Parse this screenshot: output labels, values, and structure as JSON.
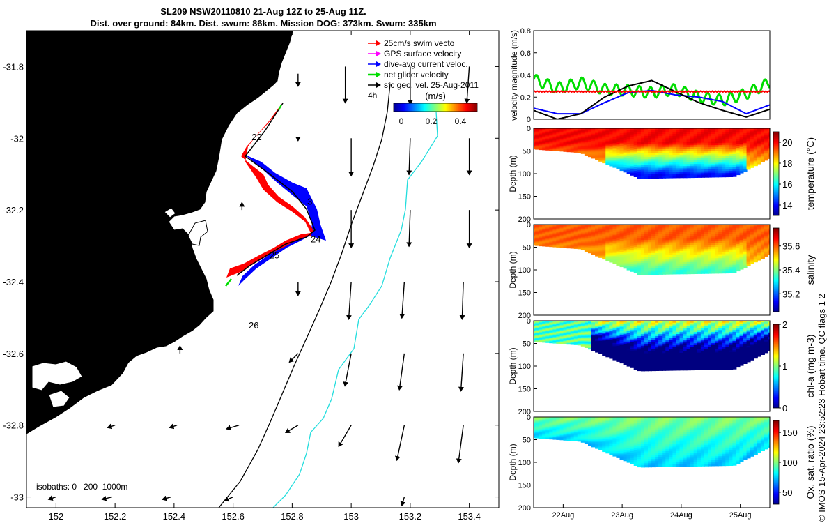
{
  "title": {
    "line1": "SL209 NSW20110810 21-Aug 12Z to 25-Aug 11Z.",
    "line2": "Dist. over ground: 84km. Dist. swum: 86km. Mission DOG: 373km. Swum: 335km"
  },
  "footer": "© IMOS 15-Apr-2024 23:52:23 Hobart time. QC flags 1 2",
  "colors": {
    "land": "#f9c79b",
    "swim": "#ff0000",
    "gps": "#ff00ff",
    "dive_avg": "#0000ff",
    "net": "#00dd00",
    "geo": "#000000",
    "iso200": "#000000",
    "iso1000": "#22dddd"
  },
  "chart_data": [
    {
      "type": "map",
      "xlim": [
        151.9,
        153.5
      ],
      "ylim": [
        -33.03,
        -31.7
      ],
      "xticks": [
        "152",
        "152.2",
        "152.4",
        "152.6",
        "152.8",
        "153",
        "153.2",
        "153.4"
      ],
      "yticks": [
        "-31.8",
        "-32",
        "-32.2",
        "-32.4",
        "-32.6",
        "-32.8",
        "-33"
      ],
      "legend": {
        "placement": "top-right",
        "entries": [
          "25cm/s swim vecto",
          "GPS surface velocity",
          "dive-avg current veloc.",
          "net glider velocity",
          "sfc geo. vel. 25-Aug-2011"
        ]
      },
      "legend_note": "4h",
      "colorbar": {
        "label": "(m/s)",
        "ticks": [
          "0",
          "0.2",
          "0.4"
        ],
        "range": [
          0,
          0.5
        ]
      },
      "isobath_note": "isobaths: 0   200  1000m",
      "track": [
        [
          152.79,
          -31.92
        ],
        [
          152.77,
          -31.96
        ],
        [
          152.74,
          -32.0
        ],
        [
          152.71,
          -32.02
        ],
        [
          152.66,
          -32.06
        ],
        [
          152.63,
          -32.04
        ],
        [
          152.67,
          -32.08
        ],
        [
          152.73,
          -32.11
        ],
        [
          152.78,
          -32.15
        ],
        [
          152.83,
          -32.2
        ],
        [
          152.86,
          -32.24
        ],
        [
          152.88,
          -32.28
        ],
        [
          152.84,
          -32.3
        ],
        [
          152.78,
          -32.32
        ],
        [
          152.72,
          -32.35
        ],
        [
          152.66,
          -32.38
        ],
        [
          152.6,
          -32.4
        ]
      ],
      "day_labels": [
        {
          "text": "22",
          "lon": 152.68,
          "lat": -32.005
        },
        {
          "text": "3",
          "lon": 152.86,
          "lat": -32.185
        },
        {
          "text": "24",
          "lon": 152.88,
          "lat": -32.29
        },
        {
          "text": "25",
          "lon": 152.74,
          "lat": -32.335
        },
        {
          "text": "26",
          "lon": 152.67,
          "lat": -32.53
        }
      ],
      "geo_vectors": [
        {
          "lon": 152.98,
          "lat": -31.8,
          "u": 0.0,
          "v": -0.29
        },
        {
          "lon": 153.2,
          "lat": -31.8,
          "u": 0.0,
          "v": -0.3
        },
        {
          "lon": 153.4,
          "lat": -31.8,
          "u": -0.02,
          "v": -0.29
        },
        {
          "lon": 152.82,
          "lat": -31.82,
          "u": 0.0,
          "v": -0.1
        },
        {
          "lon": 153.2,
          "lat": -32.0,
          "u": -0.01,
          "v": -0.29
        },
        {
          "lon": 153.4,
          "lat": -32.0,
          "u": 0.0,
          "v": -0.29
        },
        {
          "lon": 153.0,
          "lat": -32.0,
          "u": 0.0,
          "v": -0.3
        },
        {
          "lon": 152.82,
          "lat": -32.0,
          "u": 0.0,
          "v": -0.02
        },
        {
          "lon": 153.0,
          "lat": -32.2,
          "u": 0.0,
          "v": -0.3
        },
        {
          "lon": 153.2,
          "lat": -32.2,
          "u": -0.01,
          "v": -0.29
        },
        {
          "lon": 153.4,
          "lat": -32.2,
          "u": 0.0,
          "v": -0.3
        },
        {
          "lon": 152.63,
          "lat": -32.2,
          "u": 0.0,
          "v": 0.06
        },
        {
          "lon": 152.82,
          "lat": -32.4,
          "u": 0.0,
          "v": -0.11
        },
        {
          "lon": 153.0,
          "lat": -32.4,
          "u": -0.02,
          "v": -0.3
        },
        {
          "lon": 153.18,
          "lat": -32.4,
          "u": -0.02,
          "v": -0.29
        },
        {
          "lon": 153.38,
          "lat": -32.4,
          "u": -0.01,
          "v": -0.3
        },
        {
          "lon": 152.42,
          "lat": -32.6,
          "u": 0.0,
          "v": 0.06
        },
        {
          "lon": 152.82,
          "lat": -32.6,
          "u": -0.07,
          "v": -0.07
        },
        {
          "lon": 153.0,
          "lat": -32.6,
          "u": -0.05,
          "v": -0.26
        },
        {
          "lon": 153.18,
          "lat": -32.6,
          "u": -0.04,
          "v": -0.29
        },
        {
          "lon": 153.38,
          "lat": -32.6,
          "u": -0.02,
          "v": -0.3
        },
        {
          "lon": 152.2,
          "lat": -32.8,
          "u": -0.06,
          "v": -0.02
        },
        {
          "lon": 152.41,
          "lat": -32.8,
          "u": -0.06,
          "v": -0.02
        },
        {
          "lon": 152.62,
          "lat": -32.8,
          "u": -0.1,
          "v": -0.03
        },
        {
          "lon": 152.82,
          "lat": -32.8,
          "u": -0.1,
          "v": -0.06
        },
        {
          "lon": 153.0,
          "lat": -32.8,
          "u": -0.1,
          "v": -0.17
        },
        {
          "lon": 153.18,
          "lat": -32.8,
          "u": -0.06,
          "v": -0.28
        },
        {
          "lon": 153.38,
          "lat": -32.8,
          "u": -0.04,
          "v": -0.3
        },
        {
          "lon": 152.0,
          "lat": -33.0,
          "u": -0.06,
          "v": -0.02
        },
        {
          "lon": 152.19,
          "lat": -33.0,
          "u": -0.08,
          "v": -0.02
        },
        {
          "lon": 152.39,
          "lat": -33.0,
          "u": -0.07,
          "v": -0.02
        },
        {
          "lon": 152.6,
          "lat": -33.0,
          "u": -0.07,
          "v": -0.03
        },
        {
          "lon": 153.18,
          "lat": -33.0,
          "u": -0.02,
          "v": -0.07
        }
      ]
    },
    {
      "type": "line",
      "ylabel": "velocity magnitude (m/s)",
      "ylim": [
        0,
        0.8
      ],
      "yticks": [
        "0",
        "0.2",
        "0.4",
        "0.6",
        "0.8"
      ],
      "x": [
        0,
        0.1,
        0.2,
        0.3,
        0.4,
        0.5,
        0.6,
        0.7,
        0.8,
        0.9,
        1.0
      ],
      "series": [
        {
          "color": "#00dd00",
          "values": [
            0.36,
            0.28,
            0.33,
            0.27,
            0.26,
            0.24,
            0.27,
            0.2,
            0.17,
            0.23,
            0.33
          ]
        },
        {
          "color": "#0000ff",
          "values": [
            0.1,
            0.05,
            0.05,
            0.15,
            0.24,
            0.26,
            0.22,
            0.2,
            0.16,
            0.05,
            0.13
          ]
        },
        {
          "color": "#000000",
          "values": [
            0.08,
            0.0,
            0.05,
            0.2,
            0.3,
            0.35,
            0.25,
            0.15,
            0.08,
            0.02,
            0.09
          ]
        },
        {
          "color": "#ff0000",
          "values": [
            0.25,
            0.25,
            0.25,
            0.25,
            0.25,
            0.25,
            0.25,
            0.25,
            0.25,
            0.25,
            0.25
          ]
        }
      ]
    },
    {
      "type": "heatmap",
      "variable": "temperature",
      "ylabel": "Depth (m)",
      "ylim": [
        0,
        200
      ],
      "yticks": [
        "0",
        "50",
        "100",
        "150",
        "200"
      ],
      "colorbar": {
        "label": "temperature (°C)",
        "ticks": [
          "14",
          "16",
          "18",
          "20"
        ],
        "range": [
          13,
          21
        ]
      },
      "surface": 20.0,
      "deep": 14.0
    },
    {
      "type": "heatmap",
      "variable": "salinity",
      "ylabel": "Depth (m)",
      "ylim": [
        0,
        200
      ],
      "yticks": [
        "0",
        "50",
        "100",
        "150",
        "200"
      ],
      "colorbar": {
        "label": "salinity",
        "ticks": [
          "35.2",
          "35.4",
          "35.6"
        ],
        "range": [
          35.05,
          35.75
        ]
      },
      "surface": 35.6,
      "deep": 35.35
    },
    {
      "type": "heatmap",
      "variable": "chl-a",
      "ylabel": "Depth (m)",
      "ylim": [
        0,
        200
      ],
      "yticks": [
        "0",
        "50",
        "100",
        "150",
        "200"
      ],
      "colorbar": {
        "label": "chl-a (mg m-3)",
        "ticks": [
          "0",
          "1",
          "2"
        ],
        "range": [
          0,
          2
        ]
      },
      "surface": 1.2,
      "deep": 0.05
    },
    {
      "type": "heatmap",
      "variable": "oxygen",
      "ylabel": "Depth (m)",
      "ylim": [
        0,
        200
      ],
      "yticks": [
        "0",
        "50",
        "100",
        "150",
        "200"
      ],
      "xticks": [
        "22Aug",
        "23Aug",
        "24Aug",
        "25Aug"
      ],
      "colorbar": {
        "label": "Ox. sat. ratio (%)",
        "ticks": [
          "50",
          "100",
          "150"
        ],
        "range": [
          30,
          170
        ]
      },
      "surface": 105,
      "deep": 80
    }
  ]
}
